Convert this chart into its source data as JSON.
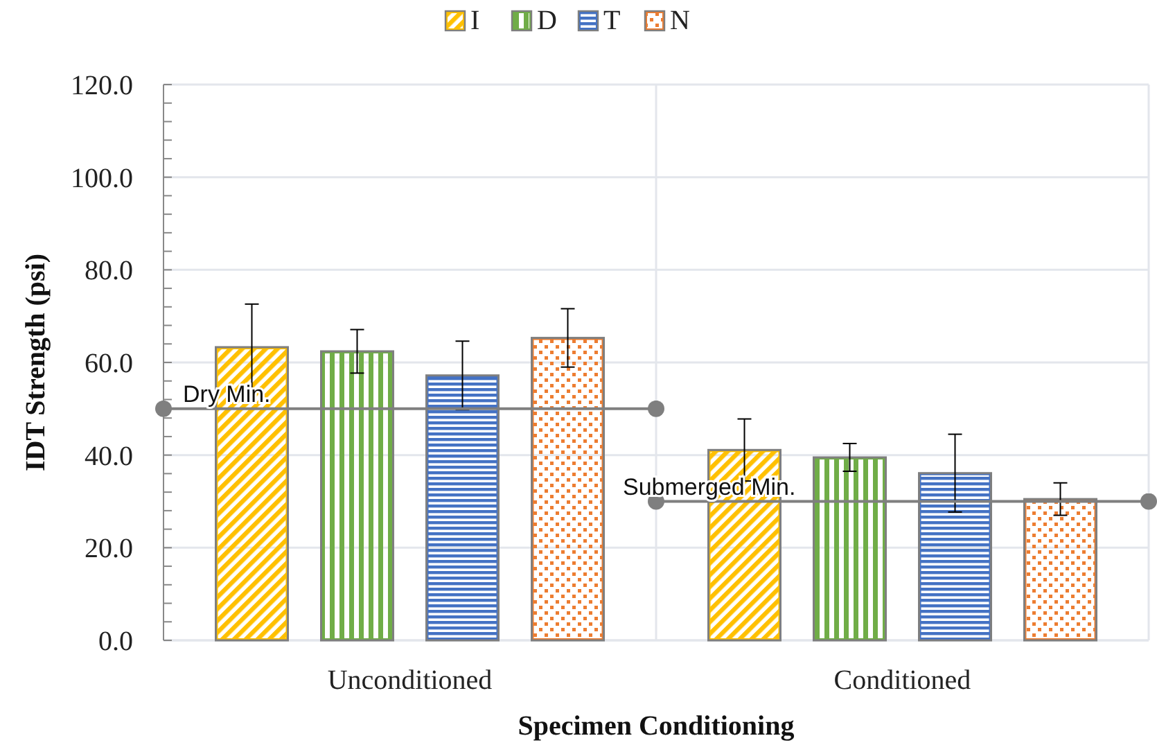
{
  "chart_data": {
    "type": "bar",
    "xlabel": "Specimen Conditioning",
    "ylabel": "IDT Strength (psi)",
    "categories": [
      "Unconditioned",
      "Conditioned"
    ],
    "series": [
      {
        "name": "I",
        "color": "#ffc000",
        "values": [
          63.3,
          41.1
        ],
        "errors": [
          9.3,
          6.7
        ]
      },
      {
        "name": "D",
        "color": "#70ad47",
        "values": [
          62.4,
          39.5
        ],
        "errors": [
          4.7,
          3.0
        ]
      },
      {
        "name": "T",
        "color": "#4472c4",
        "values": [
          57.2,
          36.1
        ],
        "errors": [
          7.4,
          8.4
        ]
      },
      {
        "name": "N",
        "color": "#ed7d31",
        "values": [
          65.3,
          30.5
        ],
        "errors": [
          6.3,
          3.5
        ]
      }
    ],
    "ylim": [
      0,
      120
    ],
    "yticks": [
      {
        "value": 0,
        "label": "0.0"
      },
      {
        "value": 20,
        "label": "20.0"
      },
      {
        "value": 40,
        "label": "40.0"
      },
      {
        "value": 60,
        "label": "60.0"
      },
      {
        "value": 80,
        "label": "80.0"
      },
      {
        "value": 100,
        "label": "100.0"
      },
      {
        "value": 120,
        "label": "120.0"
      }
    ],
    "ref_lines": [
      {
        "axis": "y",
        "value": 50,
        "label": "Dry Min.",
        "color": "#7f7f7f"
      },
      {
        "axis": "y",
        "value": 30,
        "label": "Submerged Min.",
        "color": "#7f7f7f"
      }
    ],
    "grid": true,
    "legend": "top"
  }
}
